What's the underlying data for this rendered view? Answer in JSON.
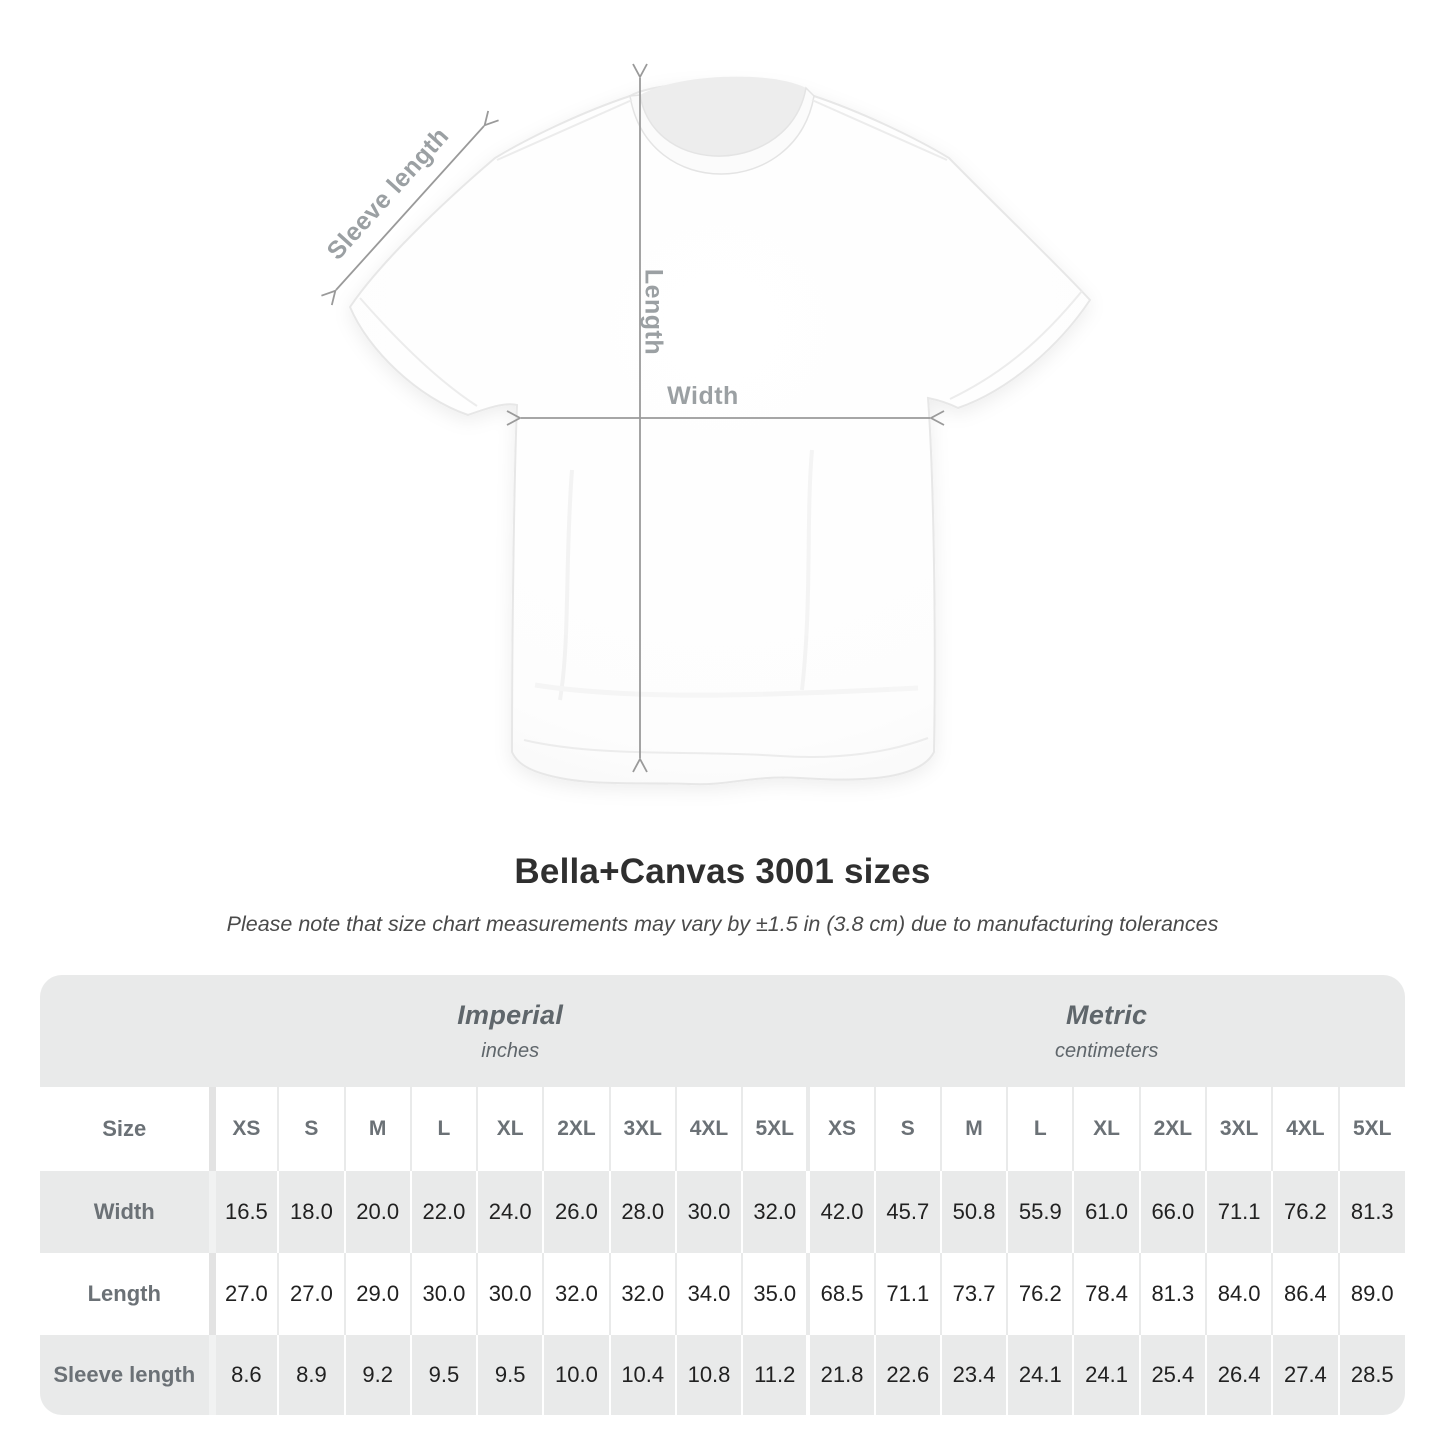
{
  "diagram": {
    "sleeve_length_label": "Sleeve length",
    "length_label": "Length",
    "width_label": "Width"
  },
  "header": {
    "title": "Bella+Canvas 3001 sizes",
    "note": "Please note that size chart measurements may vary by ±1.5 in (3.8 cm) due to manufacturing tolerances"
  },
  "size_table": {
    "corner_label": "Size",
    "sections": [
      {
        "name": "Imperial",
        "unit": "inches"
      },
      {
        "name": "Metric",
        "unit": "centimeters"
      }
    ],
    "sizes": [
      "XS",
      "S",
      "M",
      "L",
      "XL",
      "2XL",
      "3XL",
      "4XL",
      "5XL"
    ],
    "rows": [
      {
        "label": "Width",
        "imperial": [
          "16.5",
          "18.0",
          "20.0",
          "22.0",
          "24.0",
          "26.0",
          "28.0",
          "30.0",
          "32.0"
        ],
        "metric": [
          "42.0",
          "45.7",
          "50.8",
          "55.9",
          "61.0",
          "66.0",
          "71.1",
          "76.2",
          "81.3"
        ]
      },
      {
        "label": "Length",
        "imperial": [
          "27.0",
          "27.0",
          "29.0",
          "30.0",
          "30.0",
          "32.0",
          "32.0",
          "34.0",
          "35.0"
        ],
        "metric": [
          "68.5",
          "71.1",
          "73.7",
          "76.2",
          "78.4",
          "81.3",
          "84.0",
          "86.4",
          "89.0"
        ]
      },
      {
        "label": "Sleeve length",
        "imperial": [
          "8.6",
          "8.9",
          "9.2",
          "9.5",
          "9.5",
          "10.0",
          "10.4",
          "10.8",
          "11.2"
        ],
        "metric": [
          "21.8",
          "22.6",
          "23.4",
          "24.1",
          "24.1",
          "25.4",
          "26.4",
          "27.4",
          "28.5"
        ]
      }
    ]
  },
  "chart_data": {
    "type": "table",
    "title": "Bella+Canvas 3001 sizes",
    "note": "Please note that size chart measurements may vary by ±1.5 in (3.8 cm) due to manufacturing tolerances",
    "column_groups": [
      {
        "label": "Imperial",
        "unit": "inches"
      },
      {
        "label": "Metric",
        "unit": "centimeters"
      }
    ],
    "categories": [
      "XS",
      "S",
      "M",
      "L",
      "XL",
      "2XL",
      "3XL",
      "4XL",
      "5XL"
    ],
    "series": [
      {
        "name": "Width (inches)",
        "values": [
          16.5,
          18.0,
          20.0,
          22.0,
          24.0,
          26.0,
          28.0,
          30.0,
          32.0
        ]
      },
      {
        "name": "Length (inches)",
        "values": [
          27.0,
          27.0,
          29.0,
          30.0,
          30.0,
          32.0,
          32.0,
          34.0,
          35.0
        ]
      },
      {
        "name": "Sleeve length (inches)",
        "values": [
          8.6,
          8.9,
          9.2,
          9.5,
          9.5,
          10.0,
          10.4,
          10.8,
          11.2
        ]
      },
      {
        "name": "Width (cm)",
        "values": [
          42.0,
          45.7,
          50.8,
          55.9,
          61.0,
          66.0,
          71.1,
          76.2,
          81.3
        ]
      },
      {
        "name": "Length (cm)",
        "values": [
          68.5,
          71.1,
          73.7,
          76.2,
          78.4,
          81.3,
          84.0,
          86.4,
          89.0
        ]
      },
      {
        "name": "Sleeve length (cm)",
        "values": [
          21.8,
          22.6,
          23.4,
          24.1,
          24.1,
          25.4,
          26.4,
          27.4,
          28.5
        ]
      }
    ],
    "colors": {
      "table_band_gray": "#e9eaea",
      "label_gray": "#6b7176",
      "arrow_gray": "#9a9a9a"
    }
  }
}
